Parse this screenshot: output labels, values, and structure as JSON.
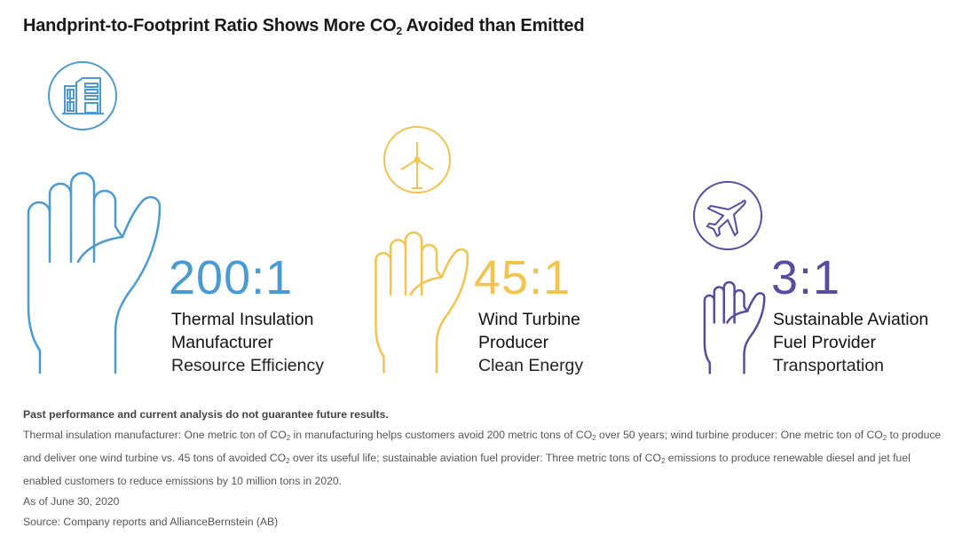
{
  "title": {
    "pre": "Handprint-to-Footprint Ratio Shows More CO",
    "sub": "2",
    "post": " Avoided than Emitted"
  },
  "colors": {
    "blue": "#4a9ad4",
    "yellow": "#f2c34e",
    "purple": "#5a4aa0"
  },
  "items": [
    {
      "ratio": "200:1",
      "name_line1": "Thermal Insulation",
      "name_line2": "Manufacturer",
      "category": "Resource Efficiency",
      "icon": "building-icon"
    },
    {
      "ratio": "45:1",
      "name_line1": "Wind Turbine",
      "name_line2": "Producer",
      "category": "Clean Energy",
      "icon": "wind-turbine-icon"
    },
    {
      "ratio": "3:1",
      "name_line1": "Sustainable Aviation",
      "name_line2": "Fuel Provider",
      "category": "Transportation",
      "icon": "airplane-icon"
    }
  ],
  "notes": {
    "disclaimer": "Past performance and current analysis do not guarantee future results.",
    "segments": [
      "Thermal insulation manufacturer: One metric ton of CO",
      " in manufacturing helps customers avoid 200 metric tons of CO",
      " over 50 years; wind turbine producer: One metric ton of CO",
      " to produce and deliver one wind turbine vs. 45 tons of avoided CO",
      " over its useful life; sustainable aviation fuel provider: Three metric tons of CO",
      " emissions to produce renewable diesel and jet fuel enabled customers to reduce emissions by 10 million tons in 2020."
    ],
    "sub": "2",
    "date": "As of June 30, 2020",
    "source": "Source: Company reports and AllianceBernstein (AB)"
  }
}
